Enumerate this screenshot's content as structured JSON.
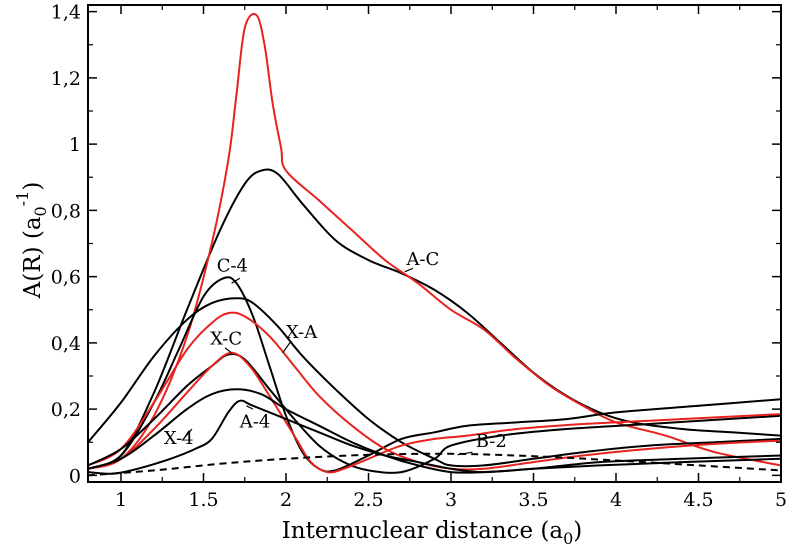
{
  "chart_data": {
    "type": "line",
    "title": "",
    "xlabel": "Internuclear distance (a",
    "xlabel_sub": "0",
    "xlabel_end": ")",
    "ylabel": "A(R) (a",
    "ylabel_sub": "0",
    "ylabel_sup": "-1",
    "ylabel_end": ")",
    "xlim": [
      0.8,
      5.0
    ],
    "ylim": [
      -0.02,
      1.42
    ],
    "grid": false,
    "legend": "none",
    "x_ticks": [
      {
        "value": 1,
        "label": "1"
      },
      {
        "value": 1.5,
        "label": "1.5"
      },
      {
        "value": 2,
        "label": "2"
      },
      {
        "value": 2.5,
        "label": "2.5"
      },
      {
        "value": 3,
        "label": "3"
      },
      {
        "value": 3.5,
        "label": "3.5"
      },
      {
        "value": 4,
        "label": "4"
      },
      {
        "value": 4.5,
        "label": "4.5"
      },
      {
        "value": 5,
        "label": "5"
      }
    ],
    "y_ticks": [
      {
        "value": 0,
        "label": "0"
      },
      {
        "value": 0.2,
        "label": "0,2"
      },
      {
        "value": 0.4,
        "label": "0,4"
      },
      {
        "value": 0.6,
        "label": "0,6"
      },
      {
        "value": 0.8,
        "label": "0,8"
      },
      {
        "value": 1.0,
        "label": "1"
      },
      {
        "value": 1.2,
        "label": "1,2"
      },
      {
        "value": 1.4,
        "label": "1,4"
      }
    ],
    "series": [
      {
        "name": "A-C black",
        "color": "#000000",
        "dash": false,
        "points": [
          [
            0.8,
            0.02
          ],
          [
            1.0,
            0.06
          ],
          [
            1.2,
            0.25
          ],
          [
            1.4,
            0.5
          ],
          [
            1.6,
            0.74
          ],
          [
            1.75,
            0.88
          ],
          [
            1.85,
            0.92
          ],
          [
            1.95,
            0.91
          ],
          [
            2.1,
            0.82
          ],
          [
            2.3,
            0.71
          ],
          [
            2.5,
            0.65
          ],
          [
            2.7,
            0.61
          ],
          [
            2.9,
            0.56
          ],
          [
            3.1,
            0.49
          ],
          [
            3.3,
            0.4
          ],
          [
            3.5,
            0.31
          ],
          [
            3.7,
            0.24
          ],
          [
            3.9,
            0.19
          ],
          [
            4.1,
            0.16
          ],
          [
            4.4,
            0.14
          ],
          [
            4.7,
            0.13
          ],
          [
            5.0,
            0.12
          ]
        ]
      },
      {
        "name": "A-C red",
        "color": "#e8231f",
        "dash": false,
        "points": [
          [
            0.8,
            0.02
          ],
          [
            1.0,
            0.05
          ],
          [
            1.2,
            0.18
          ],
          [
            1.4,
            0.42
          ],
          [
            1.55,
            0.7
          ],
          [
            1.65,
            0.95
          ],
          [
            1.7,
            1.15
          ],
          [
            1.75,
            1.35
          ],
          [
            1.82,
            1.39
          ],
          [
            1.87,
            1.3
          ],
          [
            1.92,
            1.12
          ],
          [
            1.97,
            0.99
          ],
          [
            2.0,
            0.92
          ],
          [
            2.2,
            0.83
          ],
          [
            2.4,
            0.74
          ],
          [
            2.6,
            0.65
          ],
          [
            2.8,
            0.58
          ],
          [
            3.0,
            0.5
          ],
          [
            3.2,
            0.44
          ],
          [
            3.4,
            0.35
          ],
          [
            3.6,
            0.27
          ],
          [
            3.8,
            0.21
          ],
          [
            4.0,
            0.16
          ],
          [
            4.3,
            0.12
          ],
          [
            4.6,
            0.07
          ],
          [
            5.0,
            0.03
          ]
        ]
      },
      {
        "name": "C-4",
        "color": "#000000",
        "dash": false,
        "points": [
          [
            0.8,
            0.02
          ],
          [
            1.0,
            0.06
          ],
          [
            1.2,
            0.22
          ],
          [
            1.35,
            0.38
          ],
          [
            1.5,
            0.54
          ],
          [
            1.62,
            0.595
          ],
          [
            1.7,
            0.58
          ],
          [
            1.8,
            0.48
          ],
          [
            1.9,
            0.33
          ],
          [
            2.0,
            0.18
          ],
          [
            2.1,
            0.07
          ],
          [
            2.2,
            0.02
          ],
          [
            2.3,
            0.015
          ],
          [
            2.5,
            0.06
          ],
          [
            2.7,
            0.11
          ],
          [
            2.9,
            0.13
          ],
          [
            3.1,
            0.15
          ],
          [
            3.4,
            0.16
          ],
          [
            3.7,
            0.17
          ],
          [
            4.0,
            0.19
          ],
          [
            4.5,
            0.21
          ],
          [
            5.0,
            0.23
          ]
        ]
      },
      {
        "name": "X-A black",
        "color": "#000000",
        "dash": false,
        "points": [
          [
            0.8,
            0.1
          ],
          [
            1.0,
            0.22
          ],
          [
            1.2,
            0.36
          ],
          [
            1.4,
            0.47
          ],
          [
            1.55,
            0.52
          ],
          [
            1.7,
            0.535
          ],
          [
            1.8,
            0.52
          ],
          [
            1.95,
            0.45
          ],
          [
            2.1,
            0.36
          ],
          [
            2.3,
            0.26
          ],
          [
            2.5,
            0.17
          ],
          [
            2.7,
            0.1
          ],
          [
            2.9,
            0.05
          ],
          [
            3.0,
            0.03
          ],
          [
            3.2,
            0.03
          ],
          [
            3.5,
            0.05
          ],
          [
            3.8,
            0.07
          ],
          [
            4.2,
            0.09
          ],
          [
            4.6,
            0.1
          ],
          [
            5.0,
            0.11
          ]
        ]
      },
      {
        "name": "X-A red",
        "color": "#e8231f",
        "dash": false,
        "points": [
          [
            0.8,
            0.03
          ],
          [
            1.0,
            0.08
          ],
          [
            1.2,
            0.22
          ],
          [
            1.4,
            0.38
          ],
          [
            1.55,
            0.46
          ],
          [
            1.65,
            0.49
          ],
          [
            1.75,
            0.48
          ],
          [
            1.9,
            0.42
          ],
          [
            2.05,
            0.33
          ],
          [
            2.2,
            0.24
          ],
          [
            2.4,
            0.15
          ],
          [
            2.6,
            0.08
          ],
          [
            2.8,
            0.04
          ],
          [
            3.0,
            0.02
          ],
          [
            3.2,
            0.02
          ],
          [
            3.5,
            0.04
          ],
          [
            3.8,
            0.06
          ],
          [
            4.2,
            0.08
          ],
          [
            4.6,
            0.095
          ],
          [
            5.0,
            0.105
          ]
        ]
      },
      {
        "name": "X-C black",
        "color": "#000000",
        "dash": false,
        "points": [
          [
            0.8,
            0.03
          ],
          [
            1.0,
            0.08
          ],
          [
            1.2,
            0.17
          ],
          [
            1.4,
            0.27
          ],
          [
            1.55,
            0.33
          ],
          [
            1.65,
            0.365
          ],
          [
            1.75,
            0.35
          ],
          [
            1.9,
            0.26
          ],
          [
            2.05,
            0.17
          ],
          [
            2.2,
            0.09
          ],
          [
            2.35,
            0.04
          ],
          [
            2.5,
            0.015
          ],
          [
            2.7,
            0.01
          ],
          [
            2.9,
            0.05
          ],
          [
            3.0,
            0.09
          ],
          [
            3.3,
            0.12
          ],
          [
            3.7,
            0.14
          ],
          [
            4.2,
            0.155
          ],
          [
            5.0,
            0.18
          ]
        ]
      },
      {
        "name": "X-C red",
        "color": "#e8231f",
        "dash": false,
        "points": [
          [
            0.8,
            0.02
          ],
          [
            1.0,
            0.05
          ],
          [
            1.2,
            0.14
          ],
          [
            1.4,
            0.25
          ],
          [
            1.55,
            0.33
          ],
          [
            1.67,
            0.37
          ],
          [
            1.78,
            0.33
          ],
          [
            1.9,
            0.24
          ],
          [
            2.05,
            0.12
          ],
          [
            2.15,
            0.04
          ],
          [
            2.25,
            0.01
          ],
          [
            2.35,
            0.02
          ],
          [
            2.5,
            0.05
          ],
          [
            2.7,
            0.09
          ],
          [
            2.9,
            0.11
          ],
          [
            3.1,
            0.12
          ],
          [
            3.4,
            0.14
          ],
          [
            3.8,
            0.155
          ],
          [
            4.2,
            0.165
          ],
          [
            5.0,
            0.185
          ]
        ]
      },
      {
        "name": "A-4",
        "color": "#000000",
        "dash": false,
        "points": [
          [
            0.8,
            0.02
          ],
          [
            1.0,
            0.05
          ],
          [
            1.2,
            0.12
          ],
          [
            1.4,
            0.2
          ],
          [
            1.55,
            0.245
          ],
          [
            1.7,
            0.26
          ],
          [
            1.85,
            0.245
          ],
          [
            2.0,
            0.2
          ],
          [
            2.2,
            0.15
          ],
          [
            2.4,
            0.1
          ],
          [
            2.6,
            0.06
          ],
          [
            2.8,
            0.03
          ],
          [
            3.0,
            0.01
          ],
          [
            3.2,
            0.01
          ],
          [
            3.5,
            0.02
          ],
          [
            3.9,
            0.04
          ],
          [
            4.4,
            0.05
          ],
          [
            5.0,
            0.06
          ]
        ]
      },
      {
        "name": "X-4",
        "color": "#000000",
        "dash": false,
        "points": [
          [
            0.8,
            0.01
          ],
          [
            0.95,
            0.005
          ],
          [
            1.1,
            0.02
          ],
          [
            1.3,
            0.05
          ],
          [
            1.45,
            0.08
          ],
          [
            1.55,
            0.11
          ],
          [
            1.65,
            0.19
          ],
          [
            1.72,
            0.225
          ],
          [
            1.8,
            0.21
          ],
          [
            2.0,
            0.17
          ],
          [
            2.2,
            0.13
          ],
          [
            2.4,
            0.09
          ],
          [
            2.6,
            0.06
          ],
          [
            2.8,
            0.04
          ],
          [
            3.0,
            0.02
          ],
          [
            3.2,
            0.01
          ],
          [
            3.5,
            0.02
          ],
          [
            3.9,
            0.03
          ],
          [
            4.4,
            0.04
          ],
          [
            5.0,
            0.05
          ]
        ]
      },
      {
        "name": "B-2",
        "color": "#000000",
        "dash": true,
        "points": [
          [
            0.8,
            0.0
          ],
          [
            1.2,
            0.015
          ],
          [
            1.6,
            0.035
          ],
          [
            2.0,
            0.05
          ],
          [
            2.5,
            0.062
          ],
          [
            3.0,
            0.065
          ],
          [
            3.5,
            0.058
          ],
          [
            4.0,
            0.045
          ],
          [
            4.5,
            0.03
          ],
          [
            5.0,
            0.015
          ]
        ]
      }
    ],
    "annotations": [
      {
        "text": "A-C",
        "x": 2.73,
        "y": 0.635,
        "lx1": 2.77,
        "ly1": 0.625,
        "lx2": 2.72,
        "ly2": 0.615
      },
      {
        "text": "C-4",
        "x": 1.58,
        "y": 0.615,
        "lx1": 1.72,
        "ly1": 0.595,
        "lx2": 1.67,
        "ly2": 0.58
      },
      {
        "text": "X-A",
        "x": 2.0,
        "y": 0.415,
        "lx1": 2.03,
        "ly1": 0.405,
        "lx2": 1.98,
        "ly2": 0.37
      },
      {
        "text": "X-C",
        "x": 1.54,
        "y": 0.395,
        "lx1": 1.63,
        "ly1": 0.385,
        "lx2": 1.67,
        "ly2": 0.37
      },
      {
        "text": "X-4",
        "x": 1.26,
        "y": 0.095,
        "lx1": 1.37,
        "ly1": 0.105,
        "lx2": 1.43,
        "ly2": 0.14
      },
      {
        "text": "A-4",
        "x": 1.72,
        "y": 0.145,
        "lx1": 1.8,
        "ly1": 0.2,
        "lx2": 1.76,
        "ly2": 0.21
      },
      {
        "text": "B-2",
        "x": 3.15,
        "y": 0.085,
        "lx1": 3.13,
        "ly1": 0.07,
        "lx2": 3.04,
        "ly2": 0.062
      }
    ]
  }
}
